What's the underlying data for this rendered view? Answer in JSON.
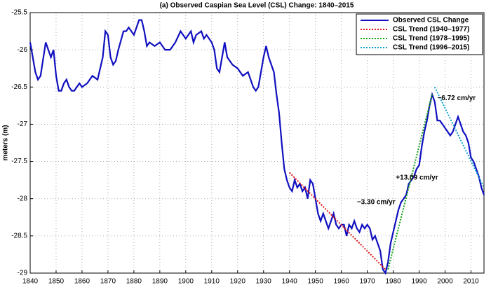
{
  "chart_data": {
    "type": "line",
    "title": "(a) Observed Caspian Sea Level (CSL) Change: 1840–2015",
    "ylabel": "meters (m)",
    "xlim": [
      1840,
      2015
    ],
    "ylim": [
      -29,
      -25.5
    ],
    "xticks": [
      1840,
      1850,
      1860,
      1870,
      1880,
      1890,
      1900,
      1910,
      1920,
      1930,
      1940,
      1950,
      1960,
      1970,
      1980,
      1990,
      2000,
      2010
    ],
    "yticks": [
      -25.5,
      -26,
      -26.5,
      -27,
      -27.5,
      -28,
      -28.5,
      -29
    ],
    "grid": true,
    "legend": "northeast",
    "series": [
      {
        "name": "Observed CSL Change",
        "color": "#1010c0",
        "style": "solid",
        "x": [
          1840,
          1842,
          1843,
          1844,
          1846,
          1847,
          1848,
          1849,
          1850,
          1851,
          1852,
          1853,
          1854,
          1855,
          1856,
          1857,
          1858,
          1859,
          1860,
          1862,
          1864,
          1866,
          1868,
          1869,
          1870,
          1871,
          1872,
          1873,
          1874,
          1876,
          1877,
          1878,
          1880,
          1882,
          1883,
          1884,
          1885,
          1886,
          1888,
          1890,
          1892,
          1894,
          1896,
          1898,
          1900,
          1901,
          1902,
          1903,
          1904,
          1906,
          1907,
          1908,
          1910,
          1911,
          1912,
          1913,
          1914,
          1915,
          1916,
          1918,
          1920,
          1922,
          1924,
          1926,
          1927,
          1928,
          1930,
          1931,
          1932,
          1933,
          1934,
          1935,
          1936,
          1937,
          1938,
          1939,
          1940,
          1941,
          1942,
          1943,
          1944,
          1945,
          1946,
          1947,
          1948,
          1949,
          1950,
          1951,
          1952,
          1953,
          1954,
          1955,
          1956,
          1957,
          1958,
          1959,
          1960,
          1961,
          1962,
          1963,
          1964,
          1965,
          1966,
          1967,
          1968,
          1969,
          1970,
          1971,
          1972,
          1973,
          1974,
          1975,
          1976,
          1977,
          1978,
          1979,
          1980,
          1981,
          1982,
          1983,
          1984,
          1985,
          1986,
          1987,
          1988,
          1989,
          1990,
          1991,
          1992,
          1993,
          1994,
          1995,
          1996,
          1997,
          1998,
          1999,
          2000,
          2001,
          2002,
          2003,
          2004,
          2005,
          2006,
          2007,
          2008,
          2009,
          2010,
          2011,
          2012,
          2013,
          2014,
          2015
        ],
        "values": [
          -25.9,
          -26.3,
          -26.4,
          -26.35,
          -25.9,
          -26.0,
          -26.1,
          -26.0,
          -26.35,
          -26.55,
          -26.55,
          -26.45,
          -26.4,
          -26.5,
          -26.55,
          -26.55,
          -26.5,
          -26.45,
          -26.5,
          -26.45,
          -26.35,
          -26.4,
          -26.1,
          -25.75,
          -25.8,
          -26.1,
          -26.2,
          -26.15,
          -26.0,
          -25.75,
          -25.75,
          -25.7,
          -25.8,
          -25.6,
          -25.6,
          -25.75,
          -25.95,
          -25.9,
          -25.95,
          -25.9,
          -26.0,
          -26.0,
          -25.9,
          -25.75,
          -25.85,
          -25.8,
          -25.75,
          -25.9,
          -25.8,
          -25.75,
          -25.85,
          -25.8,
          -25.9,
          -26.0,
          -26.25,
          -26.3,
          -26.1,
          -25.9,
          -26.1,
          -26.2,
          -26.25,
          -26.35,
          -26.3,
          -26.5,
          -26.55,
          -26.5,
          -26.1,
          -25.95,
          -26.1,
          -26.2,
          -26.3,
          -26.6,
          -26.85,
          -27.25,
          -27.6,
          -27.75,
          -27.85,
          -27.9,
          -27.75,
          -27.85,
          -27.8,
          -27.9,
          -27.85,
          -28.0,
          -27.75,
          -27.8,
          -28.0,
          -28.2,
          -28.3,
          -28.2,
          -28.3,
          -28.4,
          -28.3,
          -28.2,
          -28.35,
          -28.4,
          -28.35,
          -28.35,
          -28.5,
          -28.35,
          -28.4,
          -28.3,
          -28.4,
          -28.45,
          -28.35,
          -28.4,
          -28.35,
          -28.4,
          -28.55,
          -28.5,
          -28.6,
          -28.7,
          -28.95,
          -29.0,
          -28.85,
          -28.6,
          -28.45,
          -28.3,
          -28.15,
          -28.05,
          -28.0,
          -27.95,
          -27.8,
          -27.75,
          -27.7,
          -27.6,
          -27.55,
          -27.3,
          -27.1,
          -26.95,
          -26.75,
          -26.6,
          -26.7,
          -26.95,
          -26.95,
          -27.0,
          -27.05,
          -27.1,
          -27.15,
          -27.1,
          -27.0,
          -26.9,
          -27.0,
          -27.1,
          -27.15,
          -27.25,
          -27.45,
          -27.5,
          -27.6,
          -27.7,
          -27.85,
          -27.95
        ]
      },
      {
        "name": "CSL Trend (1940–1977)",
        "color": "#e01010",
        "style": "dotted",
        "x": [
          1940,
          1977
        ],
        "values": [
          -27.65,
          -28.95
        ]
      },
      {
        "name": "CSL Trend (1978–1995)",
        "color": "#10a010",
        "style": "dotted",
        "x": [
          1978,
          1995
        ],
        "values": [
          -28.95,
          -26.6
        ]
      },
      {
        "name": "CSL Trend (1996–2015)",
        "color": "#10a0d0",
        "style": "dotted",
        "x": [
          1996,
          2015
        ],
        "values": [
          -26.5,
          -27.85
        ]
      }
    ],
    "annotations": [
      {
        "text": "−3.30 cm/yr",
        "x": 1966,
        "y": -28.05,
        "color": "#c00000"
      },
      {
        "text": "+13.09 cm/yr",
        "x": 1981,
        "y": -27.72,
        "color": "#108010"
      },
      {
        "text": "−6.72 cm/yr",
        "x": 1997,
        "y": -26.65,
        "color": "#1090c0"
      }
    ]
  }
}
